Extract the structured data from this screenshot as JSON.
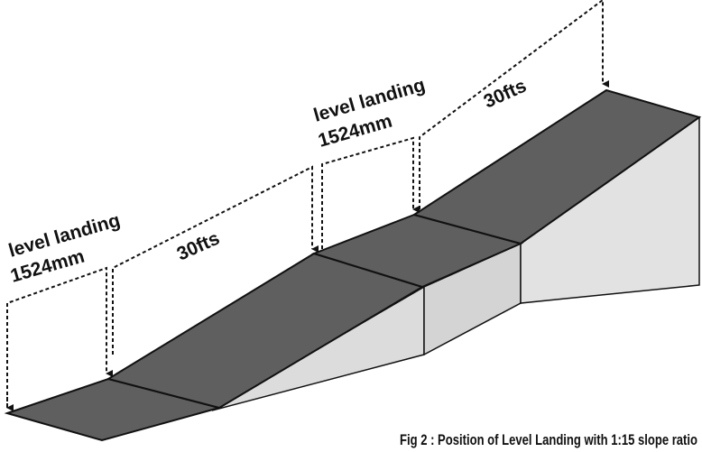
{
  "labels": {
    "landing_bottom_line1": "level landing",
    "landing_bottom_line2": "1524mm",
    "run_lower": "30fts",
    "landing_middle_line1": "level landing",
    "landing_middle_line2": "1524mm",
    "run_upper": "30fts"
  },
  "caption": "Fig 2 : Position of Level Landing with 1:15 slope ratio",
  "colors": {
    "walking_surface": "#5f5f5f",
    "side_face": "#dcdcdc",
    "outline": "#111111"
  }
}
